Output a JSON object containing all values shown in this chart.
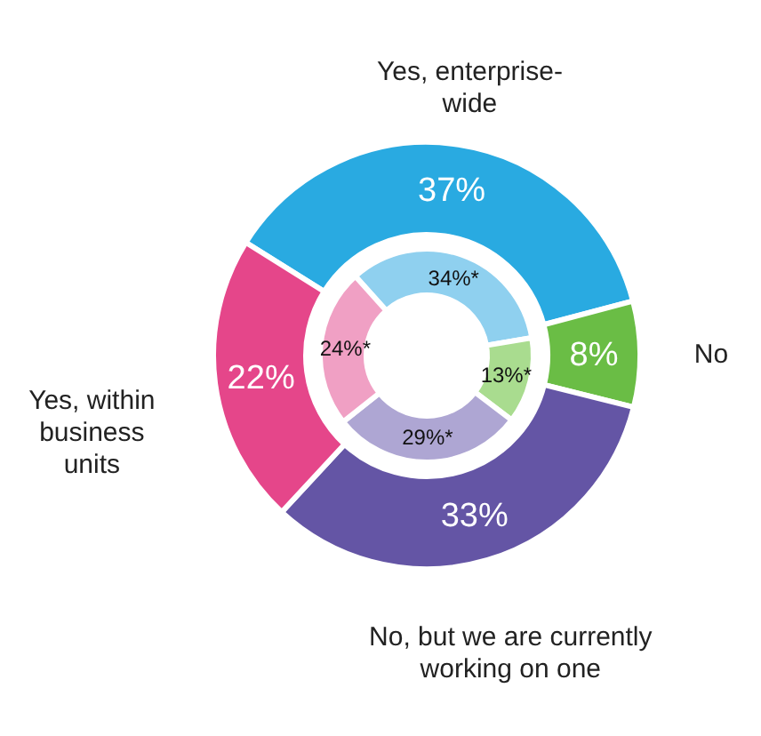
{
  "chart_data": {
    "type": "donut",
    "categories": [
      "Yes, enterprise-wide",
      "No",
      "No, but we are currently working on one",
      "Yes, within business units"
    ],
    "series": [
      {
        "values": [
          37,
          8,
          33,
          22
        ],
        "colors": [
          "#29aae1",
          "#6abd45",
          "#6455a5",
          "#e5468a"
        ],
        "value_labels": [
          "37%",
          "8%",
          "33%",
          "22%"
        ]
      },
      {
        "values": [
          34,
          13,
          29,
          24
        ],
        "colors": [
          "#8fd0ef",
          "#a9dc8f",
          "#aea6d3",
          "#f0a0c4"
        ],
        "value_labels": [
          "34%*",
          "13%*",
          "29%*",
          "24%*"
        ]
      }
    ]
  }
}
